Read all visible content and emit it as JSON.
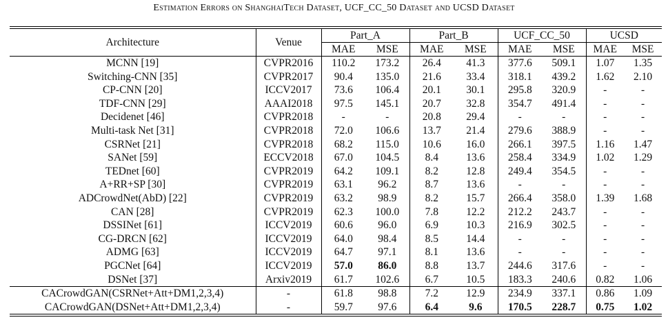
{
  "caption": "Estimation Errors on ShanghaiTech Dataset, UCF_CC_50 Dataset and UCSD Dataset",
  "header": {
    "architecture": "Architecture",
    "venue": "Venue",
    "groups": [
      "Part_A",
      "Part_B",
      "UCF_CC_50",
      "UCSD"
    ],
    "metrics": [
      "MAE",
      "MSE",
      "MAE",
      "MSE",
      "MAE",
      "MSE",
      "MAE",
      "MSE"
    ]
  },
  "rows": [
    {
      "arch": "MCNN [19]",
      "venue": "CVPR2016",
      "vals": [
        "110.2",
        "173.2",
        "26.4",
        "41.3",
        "377.6",
        "509.1",
        "1.07",
        "1.35"
      ]
    },
    {
      "arch": "Switching-CNN [35]",
      "venue": "CVPR2017",
      "vals": [
        "90.4",
        "135.0",
        "21.6",
        "33.4",
        "318.1",
        "439.2",
        "1.62",
        "2.10"
      ]
    },
    {
      "arch": "CP-CNN [20]",
      "venue": "ICCV2017",
      "vals": [
        "73.6",
        "106.4",
        "20.1",
        "30.1",
        "295.8",
        "320.9",
        "-",
        "-"
      ]
    },
    {
      "arch": "TDF-CNN [29]",
      "venue": "AAAI2018",
      "vals": [
        "97.5",
        "145.1",
        "20.7",
        "32.8",
        "354.7",
        "491.4",
        "-",
        "-"
      ]
    },
    {
      "arch": "Decidenet [46]",
      "venue": "CVPR2018",
      "vals": [
        "-",
        "-",
        "20.8",
        "29.4",
        "-",
        "-",
        "-",
        "-"
      ]
    },
    {
      "arch": "Multi-task Net [31]",
      "venue": "CVPR2018",
      "vals": [
        "72.0",
        "106.6",
        "13.7",
        "21.4",
        "279.6",
        "388.9",
        "-",
        "-"
      ]
    },
    {
      "arch": "CSRNet [21]",
      "venue": "CVPR2018",
      "vals": [
        "68.2",
        "115.0",
        "10.6",
        "16.0",
        "266.1",
        "397.5",
        "1.16",
        "1.47"
      ]
    },
    {
      "arch": "SANet [59]",
      "venue": "ECCV2018",
      "vals": [
        "67.0",
        "104.5",
        "8.4",
        "13.6",
        "258.4",
        "334.9",
        "1.02",
        "1.29"
      ]
    },
    {
      "arch": "TEDnet [60]",
      "venue": "CVPR2019",
      "vals": [
        "64.2",
        "109.1",
        "8.2",
        "12.8",
        "249.4",
        "354.5",
        "-",
        "-"
      ]
    },
    {
      "arch": "A+RR+SP [30]",
      "venue": "CVPR2019",
      "vals": [
        "63.1",
        "96.2",
        "8.7",
        "13.6",
        "-",
        "-",
        "-",
        "-"
      ]
    },
    {
      "arch": "ADCrowdNet(AbD) [22]",
      "venue": "CVPR2019",
      "vals": [
        "63.2",
        "98.9",
        "8.2",
        "15.7",
        "266.4",
        "358.0",
        "1.39",
        "1.68"
      ]
    },
    {
      "arch": "CAN [28]",
      "venue": "CVPR2019",
      "vals": [
        "62.3",
        "100.0",
        "7.8",
        "12.2",
        "212.2",
        "243.7",
        "-",
        "-"
      ]
    },
    {
      "arch": "DSSINet [61]",
      "venue": "ICCV2019",
      "vals": [
        "60.6",
        "96.0",
        "6.9",
        "10.3",
        "216.9",
        "302.5",
        "-",
        "-"
      ]
    },
    {
      "arch": "CG-DRCN [62]",
      "venue": "ICCV2019",
      "vals": [
        "64.0",
        "98.4",
        "8.5",
        "14.4",
        "-",
        "-",
        "-",
        "-"
      ]
    },
    {
      "arch": "ADMG [63]",
      "venue": "ICCV2019",
      "vals": [
        "64.7",
        "97.1",
        "8.1",
        "13.6",
        "-",
        "-",
        "-",
        "-"
      ]
    },
    {
      "arch": "PGCNet [64]",
      "venue": "ICCV2019",
      "vals": [
        "57.0",
        "86.0",
        "8.8",
        "13.7",
        "244.6",
        "317.6",
        "-",
        "-"
      ]
    },
    {
      "arch": "DSNet [37]",
      "venue": "Arxiv2019",
      "vals": [
        "61.7",
        "102.6",
        "6.7",
        "10.5",
        "183.3",
        "240.6",
        "0.82",
        "1.06"
      ]
    },
    {
      "arch": "CACrowdGAN(CSRNet+Att+DM1,2,3,4)",
      "venue": "-",
      "vals": [
        "61.8",
        "98.8",
        "7.2",
        "12.9",
        "234.9",
        "337.1",
        "0.86",
        "1.09"
      ]
    },
    {
      "arch": "CACrowdGAN(DSNet+Att+DM1,2,3,4)",
      "venue": "-",
      "vals": [
        "59.7",
        "97.6",
        "6.4",
        "9.6",
        "170.5",
        "228.7",
        "0.75",
        "1.02"
      ]
    }
  ]
}
